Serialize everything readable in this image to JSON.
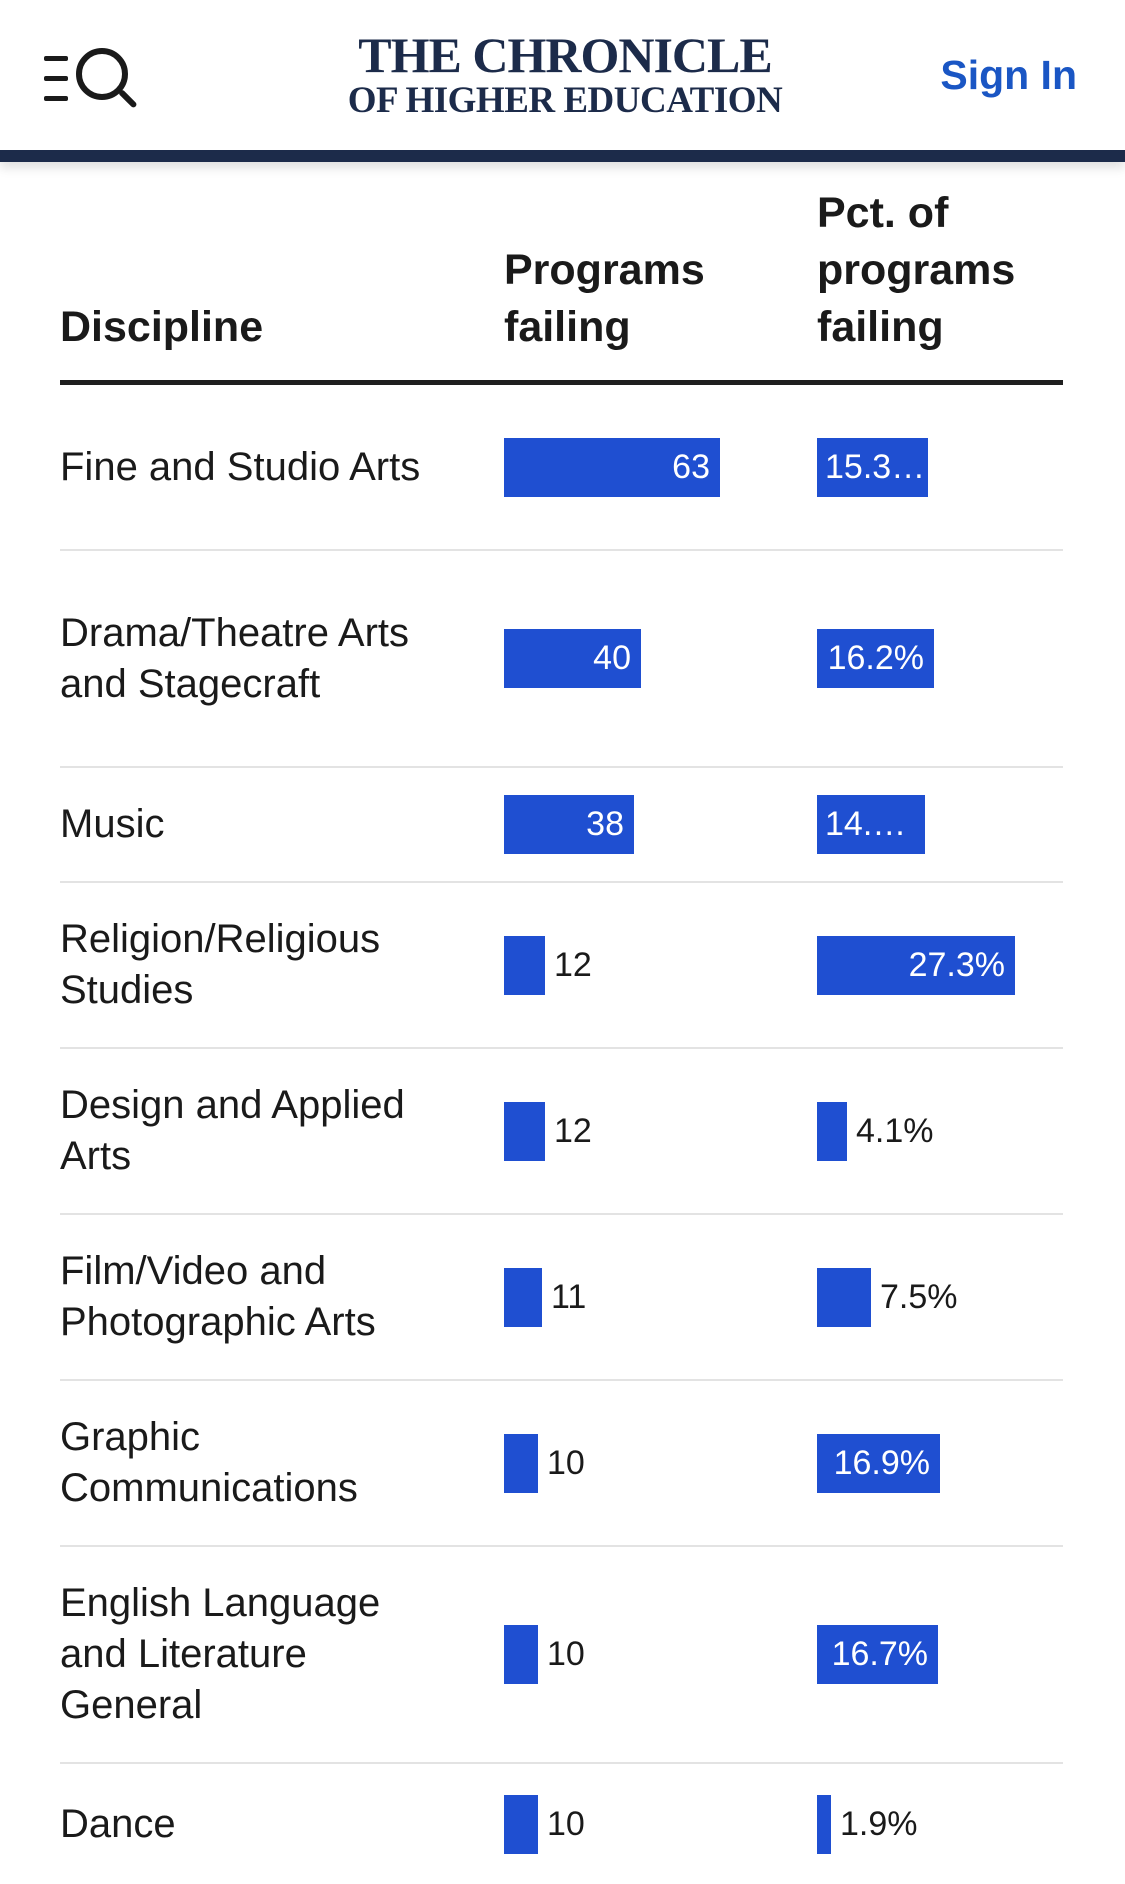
{
  "header": {
    "menu_icon": "menu-search-icon",
    "logo_line1": "THE CHRONICLE",
    "logo_line2": "OF HIGHER EDUCATION",
    "signin_label": "Sign In",
    "brand_color": "#1c2b4a",
    "link_color": "#1a56c4"
  },
  "table": {
    "columns": [
      "Discipline",
      "Programs failing",
      "Pct. of programs failing"
    ],
    "bar_color": "#1f4fd1",
    "rows": [
      {
        "discipline": "Fine and Studio Arts",
        "programs": 63,
        "programs_label": "63",
        "pct": 15.3,
        "pct_label": "15.3…"
      },
      {
        "discipline": "Drama/Theatre Arts and Stagecraft",
        "programs": 40,
        "programs_label": "40",
        "pct": 16.2,
        "pct_label": "16.2%"
      },
      {
        "discipline": "Music",
        "programs": 38,
        "programs_label": "38",
        "pct": 14.9,
        "pct_label": "14.…"
      },
      {
        "discipline": "Religion/Religious Studies",
        "programs": 12,
        "programs_label": "12",
        "pct": 27.3,
        "pct_label": "27.3%"
      },
      {
        "discipline": "Design and Applied Arts",
        "programs": 12,
        "programs_label": "12",
        "pct": 4.1,
        "pct_label": "4.1%"
      },
      {
        "discipline": "Film/Video and Photographic Arts",
        "programs": 11,
        "programs_label": "11",
        "pct": 7.5,
        "pct_label": "7.5%"
      },
      {
        "discipline": "Graphic Communications",
        "programs": 10,
        "programs_label": "10",
        "pct": 16.9,
        "pct_label": "16.9%"
      },
      {
        "discipline": "English Language and Literature General",
        "programs": 10,
        "programs_label": "10",
        "pct": 16.7,
        "pct_label": "16.7%"
      },
      {
        "discipline": "Dance",
        "programs": 10,
        "programs_label": "10",
        "pct": 1.9,
        "pct_label": "1.9%"
      }
    ]
  }
}
